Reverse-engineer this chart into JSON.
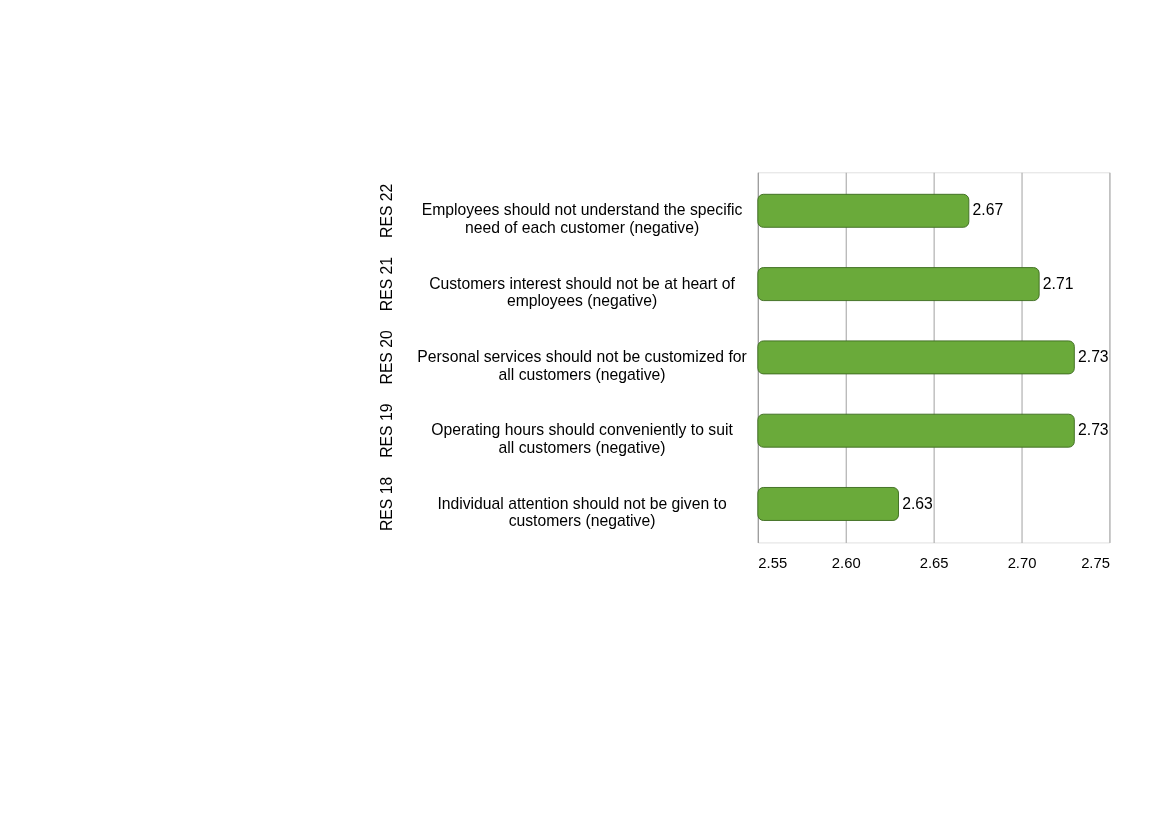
{
  "chart_data": {
    "type": "bar",
    "orientation": "horizontal",
    "categories": [
      "Employees should not understand the specific need of each customer (negative)",
      "Customers interest should not be at heart of employees (negative)",
      "Personal services should not be customized for all customers (negative)",
      "Operating hours should conveniently to suit all customers (negative)",
      "Individual attention should not be given to customers (negative)"
    ],
    "values": [
      2.67,
      2.71,
      2.73,
      2.73,
      2.63
    ],
    "color": "#6aaa3a",
    "xlim": [
      2.55,
      2.75
    ],
    "xticks": [
      2.55,
      {
        "value": 2.6,
        "label": "2.60"
      },
      2.65,
      {
        "value": 2.7,
        "label": "2.70"
      },
      2.75
    ],
    "grid": "x",
    "data_labels": true,
    "annotations": [
      "RES 22",
      "RES 21",
      "RES 20",
      "RES 19",
      "RES 18"
    ]
  }
}
